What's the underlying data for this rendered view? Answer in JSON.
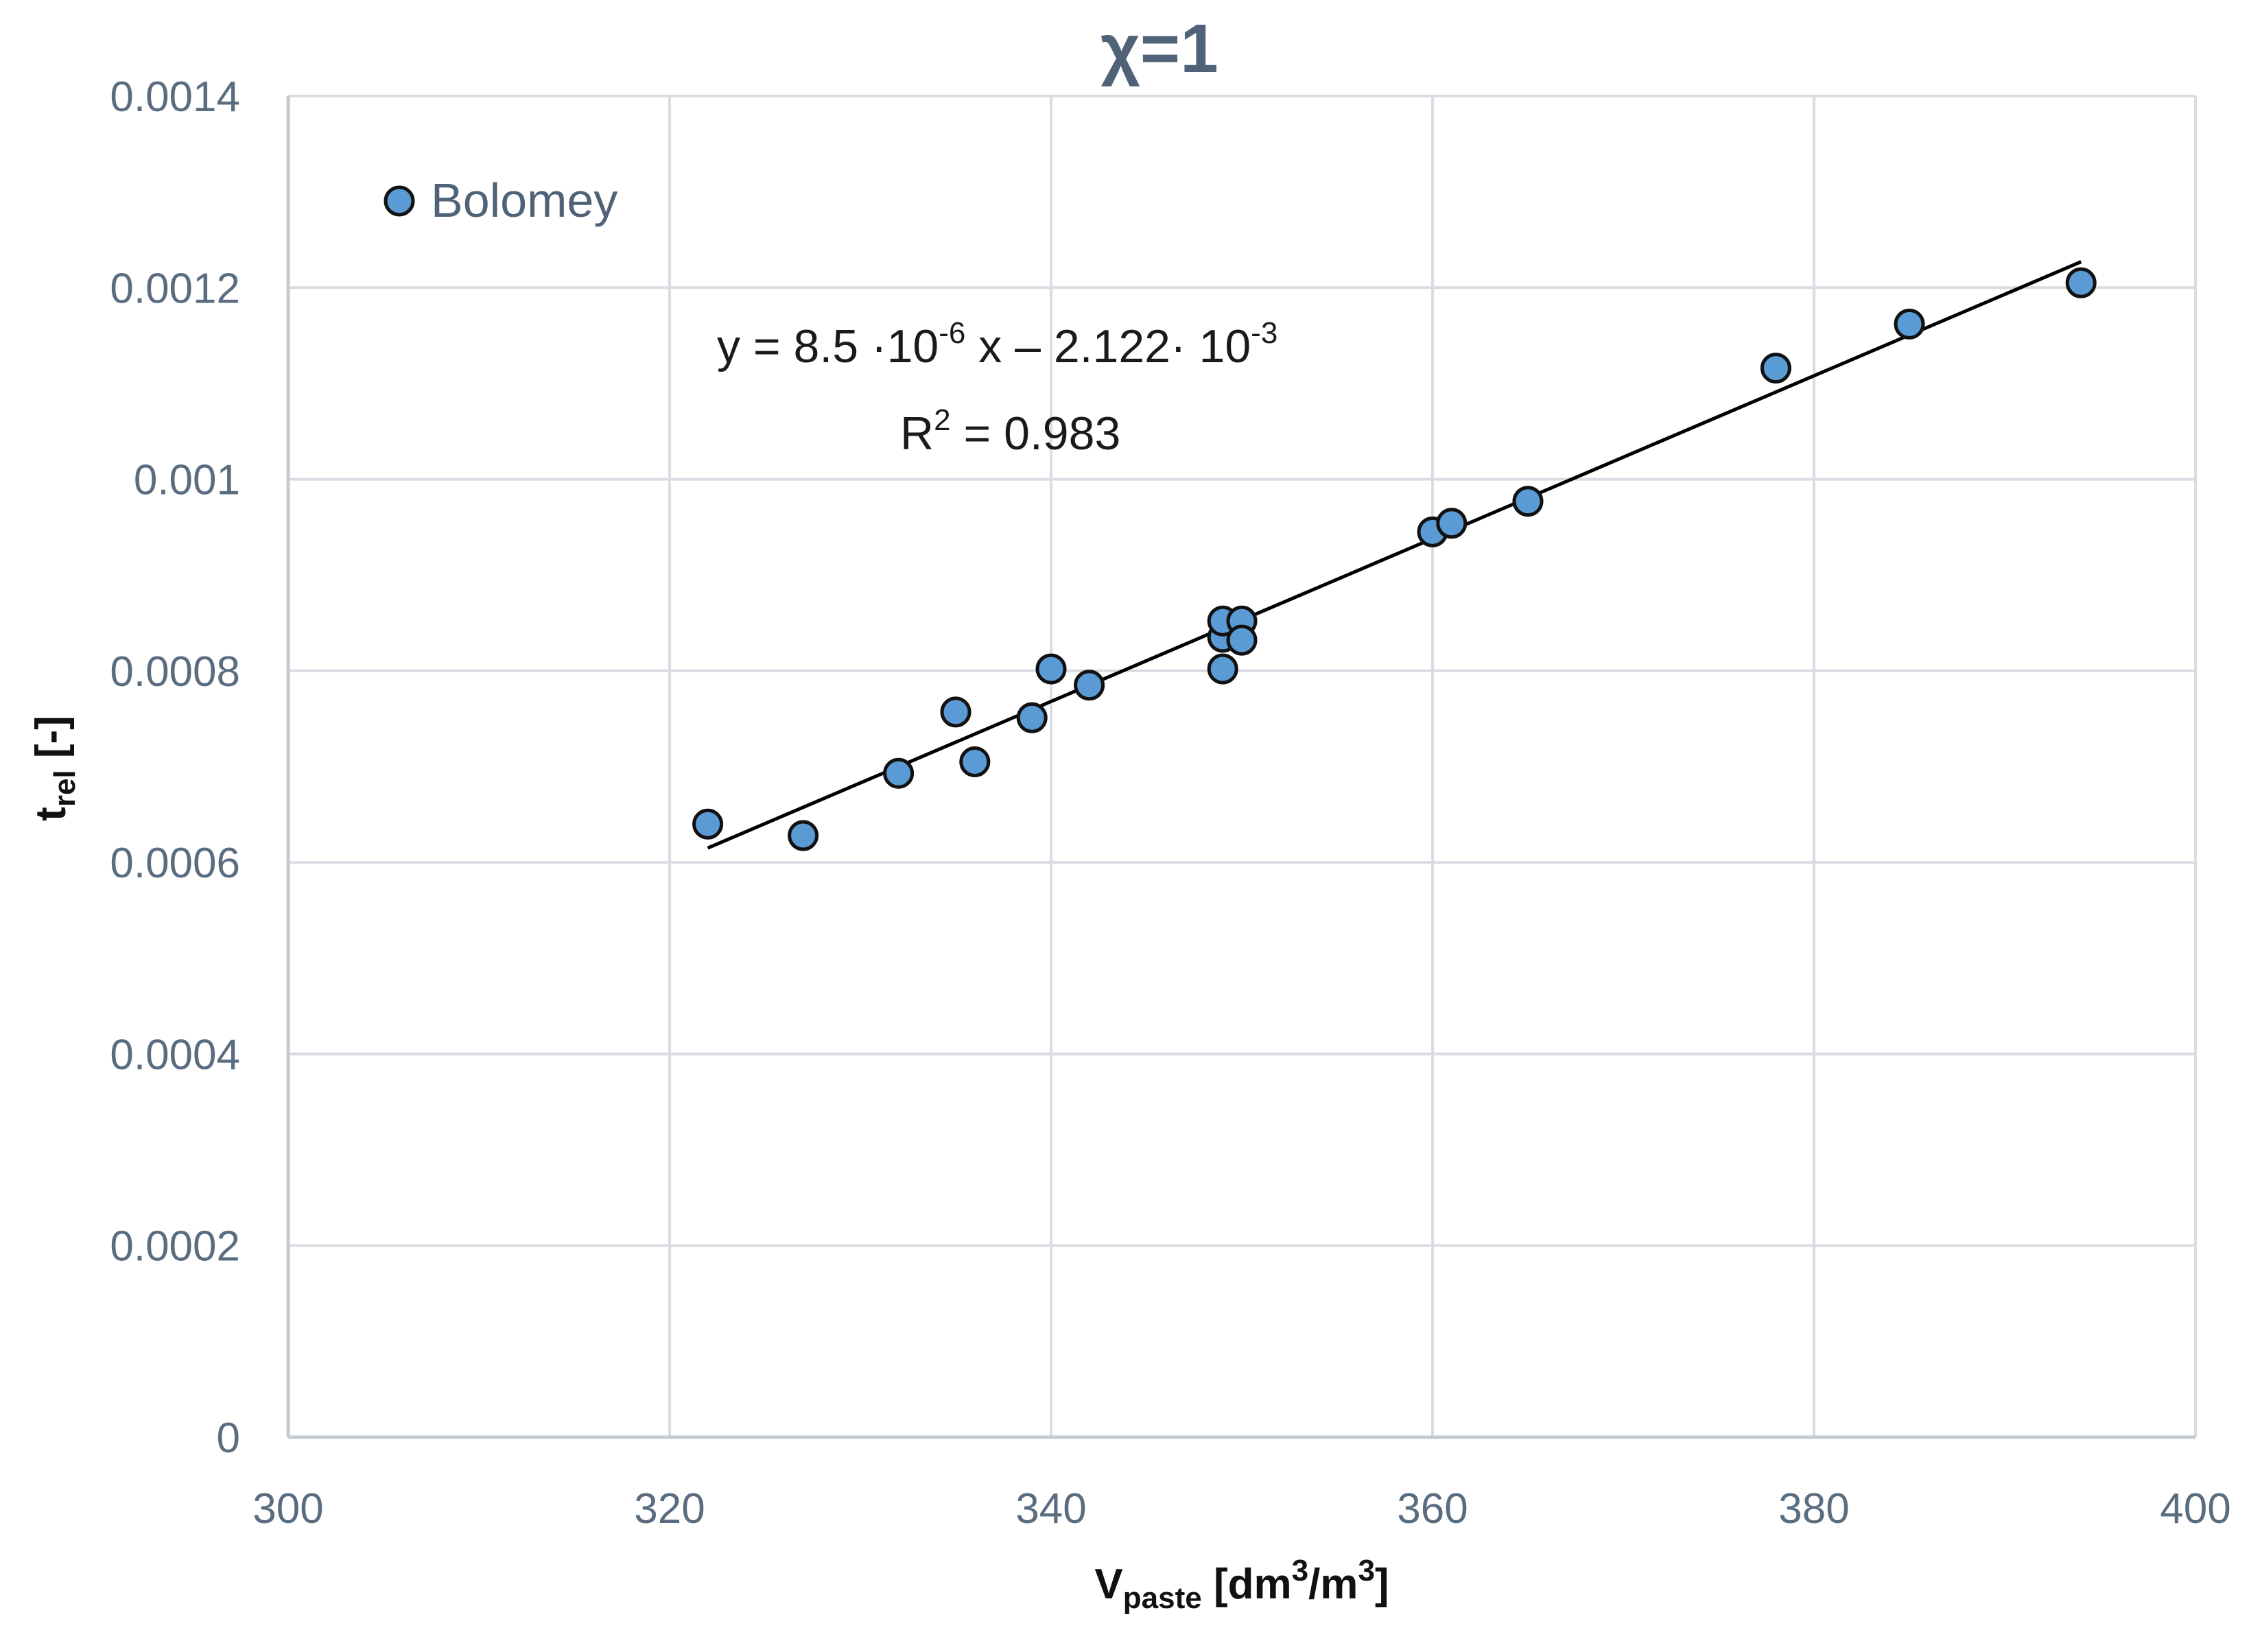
{
  "chart_data": {
    "type": "scatter",
    "title": "χ=1",
    "xlabel": {
      "main": "V",
      "sub": "paste",
      "rest": " [dm",
      "sup1": "3",
      "mid": "/m",
      "sup2": "3",
      "end": "]"
    },
    "ylabel": {
      "main": "t",
      "sub": "rel",
      "rest": " [-]"
    },
    "xlim": [
      300,
      400
    ],
    "ylim": [
      0,
      0.0014
    ],
    "xticks": [
      300,
      320,
      340,
      360,
      380,
      400
    ],
    "xtick_labels": [
      "300",
      "320",
      "340",
      "360",
      "380",
      "400"
    ],
    "yticks": [
      0,
      0.0002,
      0.0004,
      0.0006,
      0.0008,
      0.001,
      0.0012,
      0.0014
    ],
    "ytick_labels": [
      "0",
      "0.0002",
      "0.0004",
      "0.0006",
      "0.0008",
      "0.001",
      "0.0012",
      "0.0014"
    ],
    "grid": true,
    "legend": {
      "position": "top-left",
      "entries": [
        "Bolomey"
      ]
    },
    "series": [
      {
        "name": "Bolomey",
        "color": "#5b9bd5",
        "x": [
          322,
          327,
          332,
          335,
          336,
          339,
          340,
          342,
          349,
          349,
          349,
          350,
          350,
          360,
          361,
          365,
          378,
          385,
          394
        ],
        "y": [
          0.00064,
          0.000628,
          0.000693,
          0.000757,
          0.000705,
          0.000751,
          0.000802,
          0.000785,
          0.000802,
          0.000835,
          0.000852,
          0.000852,
          0.000832,
          0.000945,
          0.000954,
          0.000977,
          0.001116,
          0.001162,
          0.001205
        ]
      }
    ],
    "trendline": {
      "slope": 8.5e-06,
      "intercept": -0.002122,
      "x_range": [
        322,
        394
      ],
      "color": "#000000"
    },
    "annotations": {
      "equation": {
        "a": "y = 8.5 ·10",
        "a_exp": "-6",
        "b": " x – 2.122· 10",
        "b_exp": "-3"
      },
      "r2": {
        "a": "R",
        "a_exp": "2",
        "b": " = 0.983"
      }
    }
  }
}
